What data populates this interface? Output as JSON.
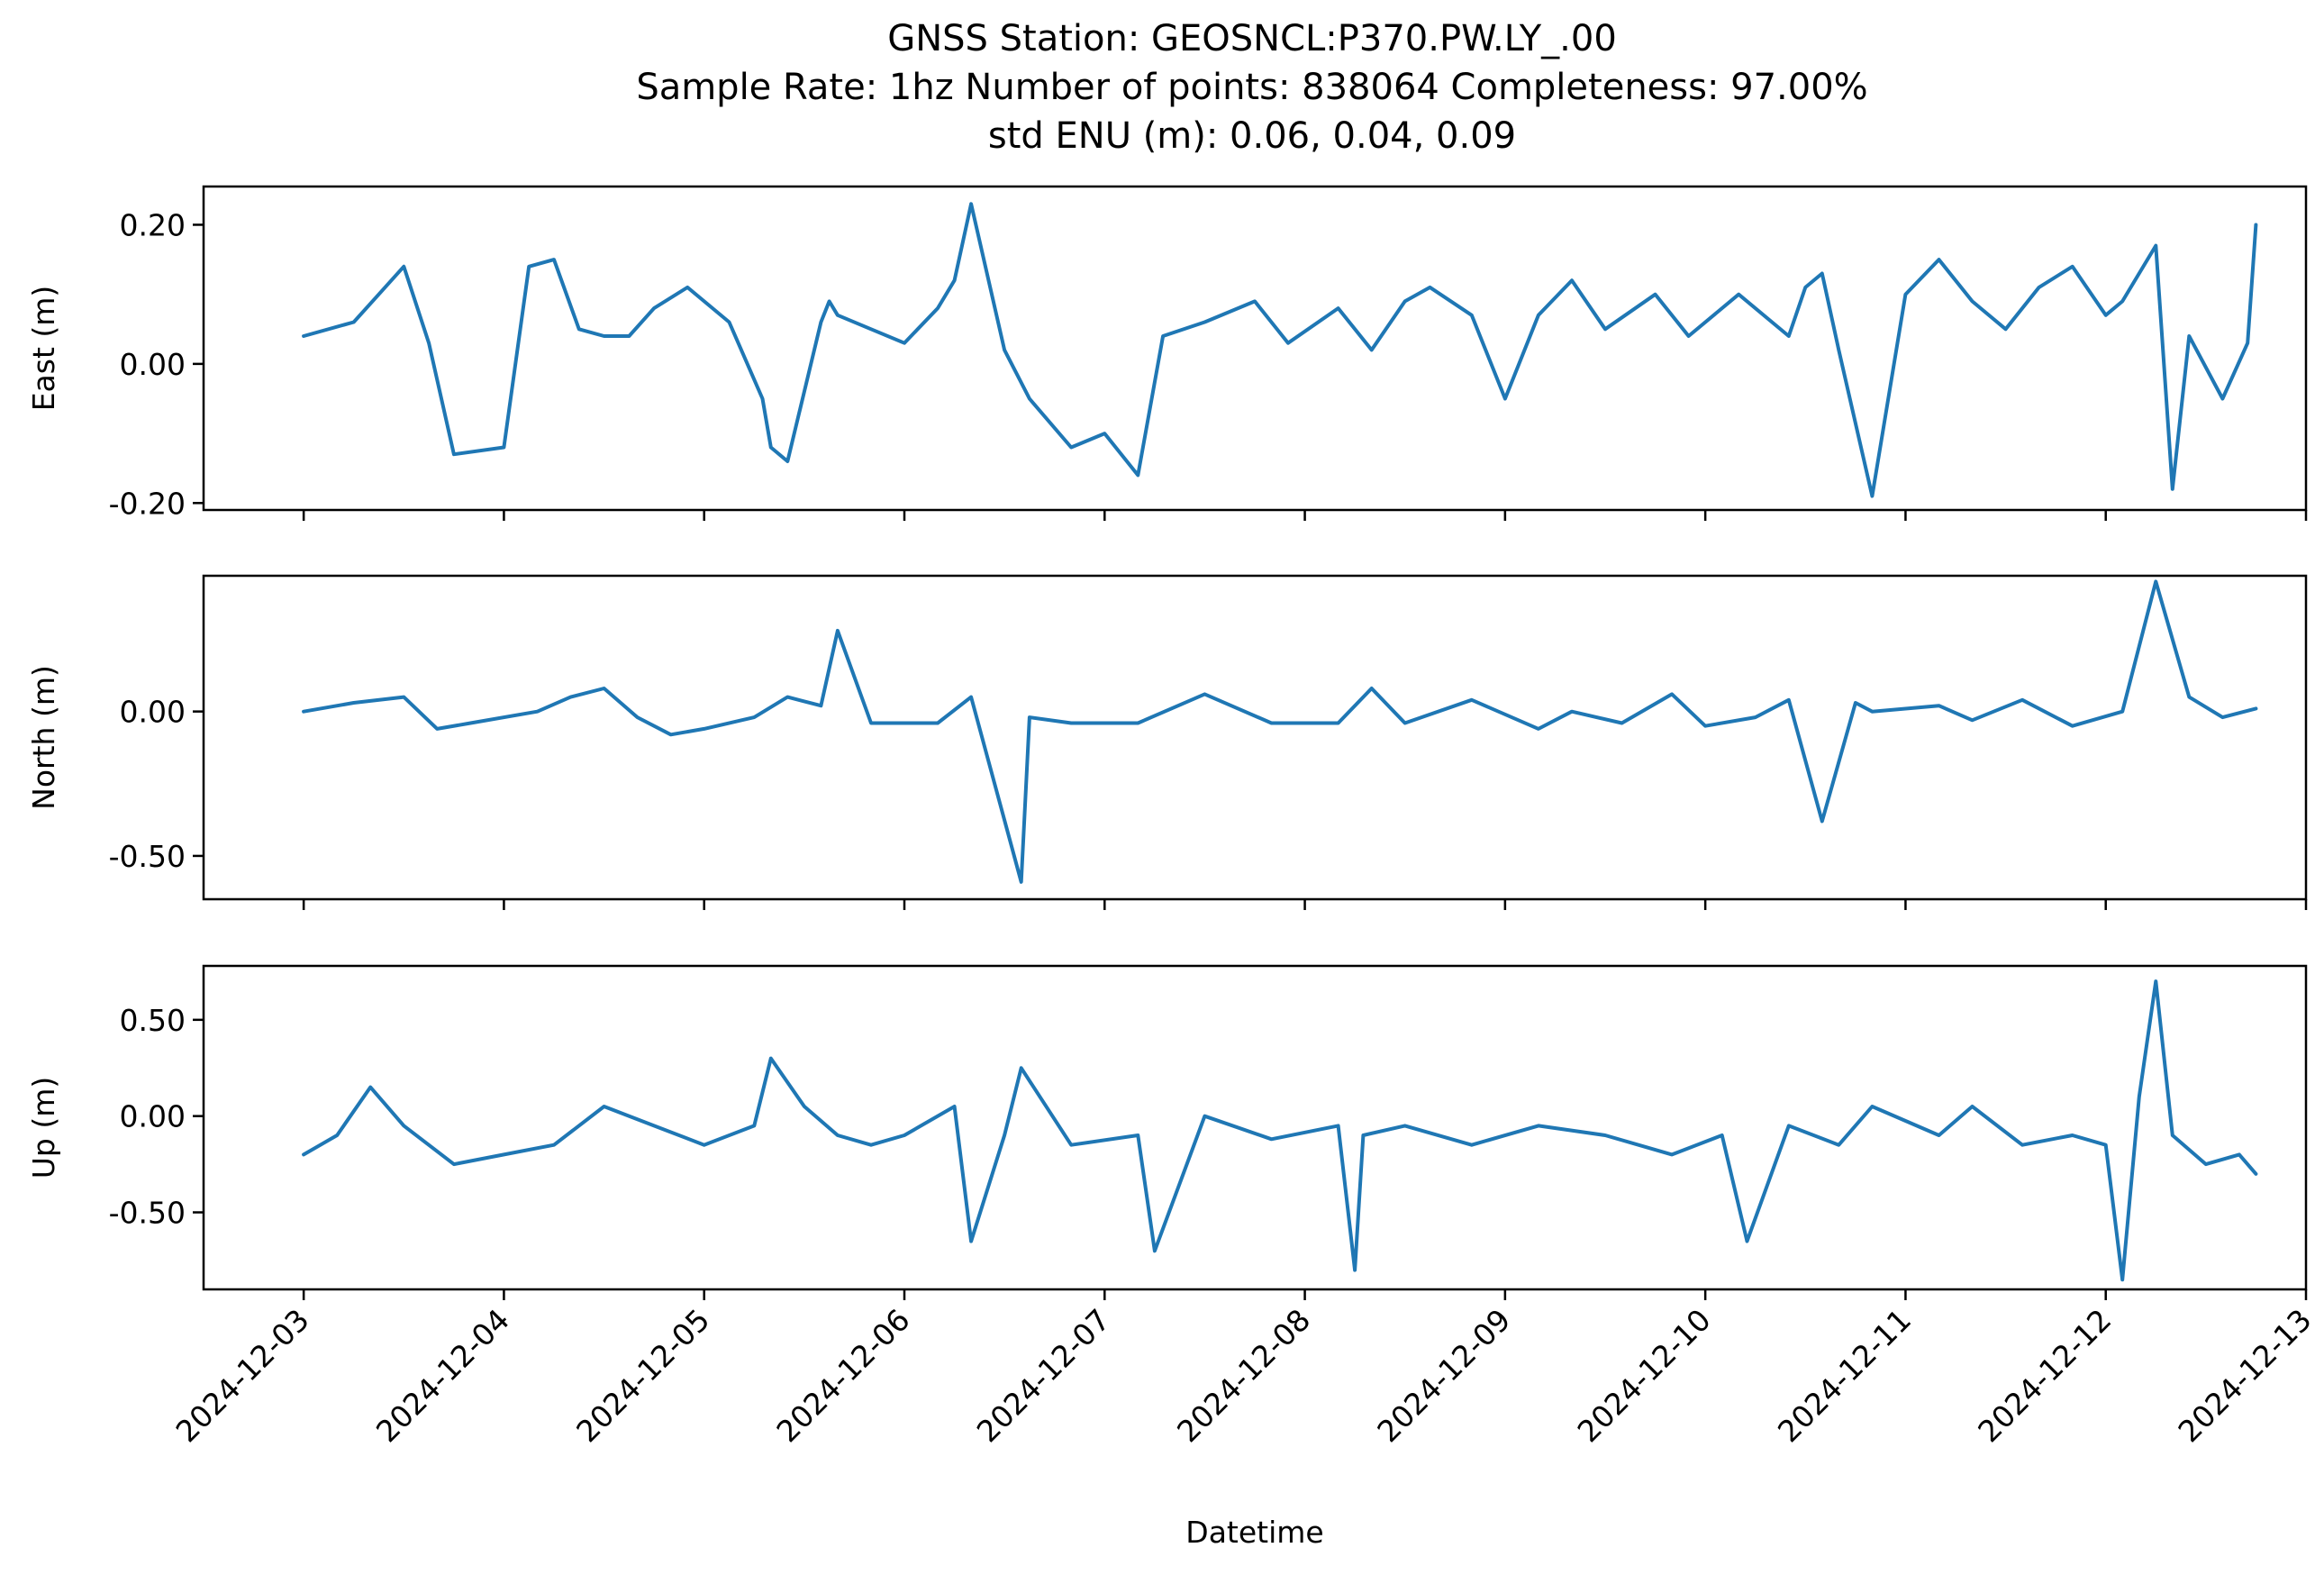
{
  "figure": {
    "title_lines": [
      "GNSS Station: GEOSNCL:P370.PW.LY_.00",
      "Sample Rate: 1hz   Number of points: 838064    Completeness:  97.00%",
      "std ENU (m):  0.06, 0.04, 0.09"
    ],
    "line_color": "#1f77b4"
  },
  "chart_data": [
    {
      "type": "line",
      "name": "east",
      "ylabel": "East (m)",
      "xlabel": "",
      "ylim": [
        -0.21,
        0.255
      ],
      "yticks": [
        -0.2,
        0.0,
        0.2
      ],
      "ytick_labels": [
        "-0.20",
        "0.00",
        "0.20"
      ],
      "show_xtick_labels": false,
      "x": [
        "2024-12-03T00:00",
        "2024-12-03T06:00",
        "2024-12-03T09:00",
        "2024-12-03T12:00",
        "2024-12-03T15:00",
        "2024-12-03T18:00",
        "2024-12-04T00:00",
        "2024-12-04T03:00",
        "2024-12-04T06:00",
        "2024-12-04T09:00",
        "2024-12-04T12:00",
        "2024-12-04T15:00",
        "2024-12-04T18:00",
        "2024-12-04T22:00",
        "2024-12-05T03:00",
        "2024-12-05T07:00",
        "2024-12-05T08:00",
        "2024-12-05T10:00",
        "2024-12-05T14:00",
        "2024-12-05T15:00",
        "2024-12-05T16:00",
        "2024-12-05T20:00",
        "2024-12-06T00:00",
        "2024-12-06T04:00",
        "2024-12-06T06:00",
        "2024-12-06T08:00",
        "2024-12-06T12:00",
        "2024-12-06T15:00",
        "2024-12-06T20:00",
        "2024-12-07T00:00",
        "2024-12-07T04:00",
        "2024-12-07T07:00",
        "2024-12-07T12:00",
        "2024-12-07T18:00",
        "2024-12-07T22:00",
        "2024-12-08T04:00",
        "2024-12-08T08:00",
        "2024-12-08T12:00",
        "2024-12-08T15:00",
        "2024-12-08T20:00",
        "2024-12-09T00:00",
        "2024-12-09T04:00",
        "2024-12-09T08:00",
        "2024-12-09T12:00",
        "2024-12-09T18:00",
        "2024-12-09T22:00",
        "2024-12-10T04:00",
        "2024-12-10T10:00",
        "2024-12-10T12:00",
        "2024-12-10T14:00",
        "2024-12-10T16:00",
        "2024-12-10T20:00",
        "2024-12-11T00:00",
        "2024-12-11T04:00",
        "2024-12-11T08:00",
        "2024-12-11T12:00",
        "2024-12-11T16:00",
        "2024-12-11T20:00",
        "2024-12-12T00:00",
        "2024-12-12T02:00",
        "2024-12-12T06:00",
        "2024-12-12T08:00",
        "2024-12-12T10:00",
        "2024-12-12T14:00",
        "2024-12-12T17:00",
        "2024-12-12T18:00"
      ],
      "y": [
        0.04,
        0.06,
        0.1,
        0.14,
        0.03,
        -0.13,
        -0.12,
        0.14,
        0.15,
        0.05,
        0.04,
        0.04,
        0.08,
        0.11,
        0.06,
        -0.05,
        -0.12,
        -0.14,
        0.06,
        0.09,
        0.07,
        0.05,
        0.03,
        0.08,
        0.12,
        0.23,
        0.02,
        -0.05,
        -0.12,
        -0.1,
        -0.16,
        0.04,
        0.06,
        0.09,
        0.03,
        0.08,
        0.02,
        0.09,
        0.11,
        0.07,
        -0.05,
        0.07,
        0.12,
        0.05,
        0.1,
        0.04,
        0.1,
        0.04,
        0.11,
        0.13,
        0.02,
        -0.19,
        0.1,
        0.15,
        0.09,
        0.05,
        0.11,
        0.14,
        0.07,
        0.09,
        0.17,
        -0.18,
        0.04,
        -0.05,
        0.03,
        0.2
      ]
    },
    {
      "type": "line",
      "name": "north",
      "ylabel": "North (m)",
      "xlabel": "",
      "ylim": [
        -0.65,
        0.47
      ],
      "yticks": [
        -0.5,
        0.0
      ],
      "ytick_labels": [
        "-0.50",
        "0.00"
      ],
      "show_xtick_labels": false,
      "x": [
        "2024-12-03T00:00",
        "2024-12-03T06:00",
        "2024-12-03T12:00",
        "2024-12-03T16:00",
        "2024-12-03T20:00",
        "2024-12-04T04:00",
        "2024-12-04T08:00",
        "2024-12-04T12:00",
        "2024-12-04T16:00",
        "2024-12-04T20:00",
        "2024-12-05T00:00",
        "2024-12-05T06:00",
        "2024-12-05T10:00",
        "2024-12-05T14:00",
        "2024-12-05T16:00",
        "2024-12-05T20:00",
        "2024-12-06T04:00",
        "2024-12-06T08:00",
        "2024-12-06T14:00",
        "2024-12-06T15:00",
        "2024-12-06T20:00",
        "2024-12-07T04:00",
        "2024-12-07T12:00",
        "2024-12-07T20:00",
        "2024-12-08T04:00",
        "2024-12-08T08:00",
        "2024-12-08T12:00",
        "2024-12-08T20:00",
        "2024-12-09T04:00",
        "2024-12-09T08:00",
        "2024-12-09T14:00",
        "2024-12-09T20:00",
        "2024-12-10T00:00",
        "2024-12-10T06:00",
        "2024-12-10T10:00",
        "2024-12-10T14:00",
        "2024-12-10T18:00",
        "2024-12-10T20:00",
        "2024-12-11T04:00",
        "2024-12-11T08:00",
        "2024-12-11T14:00",
        "2024-12-11T20:00",
        "2024-12-12T02:00",
        "2024-12-12T06:00",
        "2024-12-12T10:00",
        "2024-12-12T14:00",
        "2024-12-12T18:00"
      ],
      "y": [
        0.0,
        0.03,
        0.05,
        -0.06,
        -0.04,
        0.0,
        0.05,
        0.08,
        -0.02,
        -0.08,
        -0.06,
        -0.02,
        0.05,
        0.02,
        0.28,
        -0.04,
        -0.04,
        0.05,
        -0.59,
        -0.02,
        -0.04,
        -0.04,
        0.06,
        -0.04,
        -0.04,
        0.08,
        -0.04,
        0.04,
        -0.06,
        0.0,
        -0.04,
        0.06,
        -0.05,
        -0.02,
        0.04,
        -0.38,
        0.03,
        0.0,
        0.02,
        -0.03,
        0.04,
        -0.05,
        0.0,
        0.45,
        0.05,
        -0.02,
        0.01
      ]
    },
    {
      "type": "line",
      "name": "up",
      "ylabel": "Up (m)",
      "xlabel": "Datetime",
      "ylim": [
        -0.9,
        0.78
      ],
      "yticks": [
        -0.5,
        0.0,
        0.5
      ],
      "ytick_labels": [
        "-0.50",
        "0.00",
        "0.50"
      ],
      "show_xtick_labels": true,
      "x": [
        "2024-12-03T00:00",
        "2024-12-03T04:00",
        "2024-12-03T08:00",
        "2024-12-03T12:00",
        "2024-12-03T18:00",
        "2024-12-04T00:00",
        "2024-12-04T06:00",
        "2024-12-04T12:00",
        "2024-12-04T18:00",
        "2024-12-05T00:00",
        "2024-12-05T06:00",
        "2024-12-05T08:00",
        "2024-12-05T12:00",
        "2024-12-05T16:00",
        "2024-12-05T20:00",
        "2024-12-06T00:00",
        "2024-12-06T06:00",
        "2024-12-06T08:00",
        "2024-12-06T12:00",
        "2024-12-06T14:00",
        "2024-12-06T20:00",
        "2024-12-07T04:00",
        "2024-12-07T06:00",
        "2024-12-07T12:00",
        "2024-12-07T20:00",
        "2024-12-08T04:00",
        "2024-12-08T06:00",
        "2024-12-08T07:00",
        "2024-12-08T12:00",
        "2024-12-08T20:00",
        "2024-12-09T04:00",
        "2024-12-09T12:00",
        "2024-12-09T20:00",
        "2024-12-10T02:00",
        "2024-12-10T05:00",
        "2024-12-10T10:00",
        "2024-12-10T16:00",
        "2024-12-10T20:00",
        "2024-12-11T04:00",
        "2024-12-11T08:00",
        "2024-12-11T14:00",
        "2024-12-11T20:00",
        "2024-12-12T00:00",
        "2024-12-12T02:00",
        "2024-12-12T04:00",
        "2024-12-12T06:00",
        "2024-12-12T08:00",
        "2024-12-12T12:00",
        "2024-12-12T16:00",
        "2024-12-12T18:00"
      ],
      "y": [
        -0.2,
        -0.1,
        0.15,
        -0.05,
        -0.25,
        -0.2,
        -0.15,
        0.05,
        -0.05,
        -0.15,
        -0.05,
        0.3,
        0.05,
        -0.1,
        -0.15,
        -0.1,
        0.05,
        -0.65,
        -0.1,
        0.25,
        -0.15,
        -0.1,
        -0.7,
        0.0,
        -0.12,
        -0.05,
        -0.8,
        -0.1,
        -0.05,
        -0.15,
        -0.05,
        -0.1,
        -0.2,
        -0.1,
        -0.65,
        -0.05,
        -0.15,
        0.05,
        -0.1,
        0.05,
        -0.15,
        -0.1,
        -0.15,
        -0.85,
        0.1,
        0.7,
        -0.1,
        -0.25,
        -0.2,
        -0.3
      ]
    }
  ],
  "xaxis": {
    "range": [
      "2024-12-02T12:00",
      "2024-12-13T00:00"
    ],
    "tick_labels": [
      "2024-12-03",
      "2024-12-04",
      "2024-12-05",
      "2024-12-06",
      "2024-12-07",
      "2024-12-08",
      "2024-12-09",
      "2024-12-10",
      "2024-12-11",
      "2024-12-12",
      "2024-12-13"
    ]
  }
}
